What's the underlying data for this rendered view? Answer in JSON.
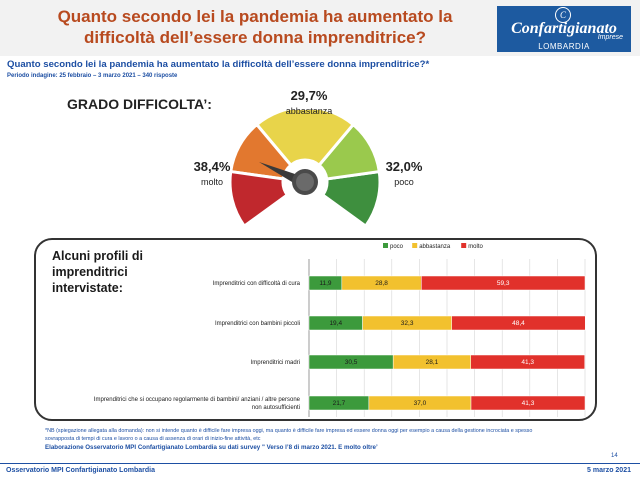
{
  "header": {
    "title": "Quanto secondo lei la pandemia ha aumentato la\ndifficoltà dell’essere donna imprenditrice?"
  },
  "logo": {
    "mark": "C",
    "name": "Confartigianato",
    "sub": "Imprese",
    "region": "LOMBARDIA"
  },
  "question": "Quanto secondo lei la pandemia ha aumentato la difficoltà dell’essere donna imprenditrice?*",
  "period": "Periodo indagine: 25 febbraio – 3 marzo 2021 – 340 risposte",
  "gauge": {
    "title": "GRADO DIFFICOLTA’:",
    "molto_value": "38,4%",
    "molto_label": "molto",
    "abbastanza_value": "29,7%",
    "abbastanza_label": "abbastanza",
    "poco_value": "32,0%",
    "poco_label": "poco",
    "colors": {
      "red": "#c0282d",
      "orange": "#e2782f",
      "yellow": "#e8d44a",
      "lightgreen": "#9ac94d",
      "green": "#3e8f3e"
    }
  },
  "panel": {
    "title": "Alcuni profili di\nimprenditrici\nintervistate:"
  },
  "chart_data": {
    "type": "bar",
    "orientation": "horizontal",
    "stacked": true,
    "categories": [
      "Imprenditrici con difficoltà di cura",
      "Imprenditrici con bambini piccoli",
      "Imprenditrici madri",
      "Imprenditrici che si occupano regolarmente di bambini/ anziani / altre persone non autosufficienti"
    ],
    "series": [
      {
        "name": "poco",
        "color": "#3c9a3c",
        "values": [
          11.9,
          19.4,
          30.5,
          21.7
        ],
        "labels": [
          "11,9",
          "19,4",
          "30,5",
          "21,7"
        ]
      },
      {
        "name": "abbastanza",
        "color": "#f2c12e",
        "values": [
          28.8,
          32.3,
          28.1,
          37.0
        ],
        "labels": [
          "28,8",
          "32,3",
          "28,1",
          "37,0"
        ]
      },
      {
        "name": "molto",
        "color": "#e1312b",
        "values": [
          59.3,
          48.4,
          41.3,
          41.3
        ],
        "labels": [
          "59,3",
          "48,4",
          "41,3",
          "41,3"
        ]
      }
    ],
    "xlim": [
      0,
      100
    ],
    "legend": "top",
    "grid": true
  },
  "footnotes": {
    "line1": "*NB (spiegazione allegata alla domanda): non si intende quanto è difficile fare impresa oggi, ma quanto è difficile fare impresa ed essere donna oggi per esempio a causa della gestione incrociata e spesso",
    "line2": "sovrapposta di tempi di cura e lavoro o a causa di assenza di orari di inizio-fine attività, etc",
    "source": "Elaborazione Osservatorio MPI Confartigianato Lombardia su dati survey \" Verso l’8 di marzo 2021. E molto oltre’"
  },
  "page_number": "14",
  "footer": {
    "left": "Osservatorio MPI Confartigianato Lombardia",
    "right": "5 marzo 2021"
  }
}
